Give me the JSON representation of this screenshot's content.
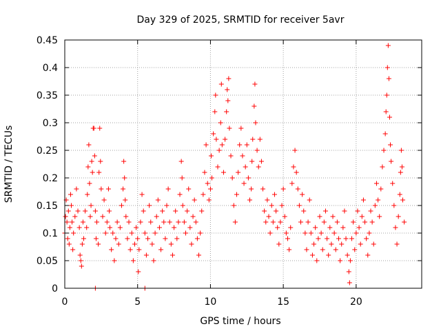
{
  "chart_data": {
    "type": "scatter",
    "title": "Day 329 of 2025, SRMTID for receiver 5avr",
    "xlabel": "GPS time / hours",
    "ylabel": "SRMTID / TECUs",
    "xlim": [
      0,
      24.5
    ],
    "ylim": [
      0,
      0.45
    ],
    "xticks": [
      0,
      5,
      10,
      15,
      20
    ],
    "xtick_labels": [
      "0",
      "5",
      "10",
      "15",
      "20"
    ],
    "yticks": [
      0,
      0.05,
      0.1,
      0.15,
      0.2,
      0.25,
      0.3,
      0.35,
      0.4,
      0.45
    ],
    "ytick_labels": [
      "0",
      "0.05",
      "0.1",
      "0.15",
      "0.2",
      "0.25",
      "0.3",
      "0.35",
      "0.4",
      "0.45"
    ],
    "grid": true,
    "marker": "+",
    "color": "#ff0000",
    "series": [
      {
        "name": "SRMTID",
        "points": [
          [
            0.0,
            0.1
          ],
          [
            0.05,
            0.13
          ],
          [
            0.1,
            0.16
          ],
          [
            0.15,
            0.12
          ],
          [
            0.2,
            0.09
          ],
          [
            0.25,
            0.14
          ],
          [
            0.3,
            0.08
          ],
          [
            0.35,
            0.11
          ],
          [
            0.4,
            0.17
          ],
          [
            0.45,
            0.15
          ],
          [
            0.5,
            0.12
          ],
          [
            0.55,
            0.07
          ],
          [
            0.6,
            0.1
          ],
          [
            0.7,
            0.13
          ],
          [
            0.8,
            0.18
          ],
          [
            0.9,
            0.14
          ],
          [
            1.0,
            0.11
          ],
          [
            1.05,
            0.06
          ],
          [
            1.1,
            0.05
          ],
          [
            1.15,
            0.04
          ],
          [
            1.2,
            0.08
          ],
          [
            1.25,
            0.12
          ],
          [
            1.3,
            0.09
          ],
          [
            1.4,
            0.14
          ],
          [
            1.5,
            0.11
          ],
          [
            1.55,
            0.17
          ],
          [
            1.6,
            0.22
          ],
          [
            1.65,
            0.26
          ],
          [
            1.7,
            0.19
          ],
          [
            1.75,
            0.13
          ],
          [
            1.8,
            0.15
          ],
          [
            1.85,
            0.23
          ],
          [
            1.9,
            0.21
          ],
          [
            1.95,
            0.29
          ],
          [
            2.0,
            0.29
          ],
          [
            2.05,
            0.24
          ],
          [
            2.1,
            0.14
          ],
          [
            2.15,
            0.09
          ],
          [
            2.2,
            0.12
          ],
          [
            2.3,
            0.08
          ],
          [
            2.35,
            0.21
          ],
          [
            2.4,
            0.29
          ],
          [
            2.45,
            0.23
          ],
          [
            2.5,
            0.18
          ],
          [
            2.6,
            0.13
          ],
          [
            2.7,
            0.16
          ],
          [
            2.8,
            0.1
          ],
          [
            2.9,
            0.12
          ],
          [
            3.0,
            0.18
          ],
          [
            3.05,
            0.14
          ],
          [
            3.1,
            0.11
          ],
          [
            3.2,
            0.07
          ],
          [
            3.3,
            0.1
          ],
          [
            3.4,
            0.05
          ],
          [
            3.5,
            0.09
          ],
          [
            3.6,
            0.12
          ],
          [
            3.7,
            0.08
          ],
          [
            3.8,
            0.11
          ],
          [
            3.9,
            0.15
          ],
          [
            4.0,
            0.18
          ],
          [
            4.05,
            0.23
          ],
          [
            4.1,
            0.2
          ],
          [
            4.15,
            0.16
          ],
          [
            4.2,
            0.13
          ],
          [
            4.3,
            0.09
          ],
          [
            4.4,
            0.12
          ],
          [
            4.5,
            0.07
          ],
          [
            4.6,
            0.1
          ],
          [
            4.7,
            0.05
          ],
          [
            4.8,
            0.08
          ],
          [
            4.9,
            0.11
          ],
          [
            5.0,
            0.09
          ],
          [
            5.05,
            0.03
          ],
          [
            5.1,
            0.07
          ],
          [
            5.2,
            0.12
          ],
          [
            5.3,
            0.17
          ],
          [
            5.4,
            0.14
          ],
          [
            5.5,
            0.1
          ],
          [
            5.6,
            0.06
          ],
          [
            5.7,
            0.09
          ],
          [
            5.8,
            0.15
          ],
          [
            5.9,
            0.12
          ],
          [
            6.0,
            0.08
          ],
          [
            6.1,
            0.05
          ],
          [
            6.2,
            0.1
          ],
          [
            6.3,
            0.13
          ],
          [
            6.4,
            0.16
          ],
          [
            6.5,
            0.11
          ],
          [
            6.6,
            0.07
          ],
          [
            6.7,
            0.14
          ],
          [
            6.8,
            0.12
          ],
          [
            6.9,
            0.09
          ],
          [
            7.0,
            0.15
          ],
          [
            7.1,
            0.18
          ],
          [
            7.2,
            0.12
          ],
          [
            7.3,
            0.08
          ],
          [
            7.4,
            0.06
          ],
          [
            7.5,
            0.11
          ],
          [
            7.6,
            0.14
          ],
          [
            7.7,
            0.09
          ],
          [
            7.8,
            0.12
          ],
          [
            7.9,
            0.17
          ],
          [
            8.0,
            0.23
          ],
          [
            8.05,
            0.2
          ],
          [
            8.1,
            0.15
          ],
          [
            8.2,
            0.12
          ],
          [
            8.3,
            0.1
          ],
          [
            8.4,
            0.14
          ],
          [
            8.5,
            0.18
          ],
          [
            8.6,
            0.11
          ],
          [
            8.7,
            0.08
          ],
          [
            8.8,
            0.13
          ],
          [
            8.9,
            0.16
          ],
          [
            9.0,
            0.12
          ],
          [
            9.1,
            0.09
          ],
          [
            9.2,
            0.06
          ],
          [
            9.3,
            0.1
          ],
          [
            9.4,
            0.14
          ],
          [
            9.5,
            0.17
          ],
          [
            9.6,
            0.21
          ],
          [
            9.7,
            0.26
          ],
          [
            9.8,
            0.19
          ],
          [
            9.9,
            0.16
          ],
          [
            10.0,
            0.18
          ],
          [
            10.05,
            0.24
          ],
          [
            10.1,
            0.2
          ],
          [
            10.2,
            0.28
          ],
          [
            10.3,
            0.32
          ],
          [
            10.35,
            0.35
          ],
          [
            10.4,
            0.27
          ],
          [
            10.5,
            0.22
          ],
          [
            10.6,
            0.25
          ],
          [
            10.7,
            0.3
          ],
          [
            10.75,
            0.37
          ],
          [
            10.8,
            0.26
          ],
          [
            10.9,
            0.21
          ],
          [
            11.0,
            0.27
          ],
          [
            11.1,
            0.32
          ],
          [
            11.15,
            0.36
          ],
          [
            11.2,
            0.34
          ],
          [
            11.25,
            0.38
          ],
          [
            11.3,
            0.29
          ],
          [
            11.4,
            0.24
          ],
          [
            11.5,
            0.2
          ],
          [
            11.6,
            0.15
          ],
          [
            11.7,
            0.12
          ],
          [
            11.8,
            0.17
          ],
          [
            11.9,
            0.21
          ],
          [
            12.0,
            0.26
          ],
          [
            12.1,
            0.29
          ],
          [
            12.2,
            0.24
          ],
          [
            12.3,
            0.19
          ],
          [
            12.4,
            0.22
          ],
          [
            12.5,
            0.26
          ],
          [
            12.6,
            0.2
          ],
          [
            12.7,
            0.16
          ],
          [
            12.8,
            0.18
          ],
          [
            12.85,
            0.23
          ],
          [
            12.9,
            0.27
          ],
          [
            13.0,
            0.33
          ],
          [
            13.05,
            0.37
          ],
          [
            13.1,
            0.3
          ],
          [
            13.2,
            0.25
          ],
          [
            13.3,
            0.22
          ],
          [
            13.4,
            0.27
          ],
          [
            13.5,
            0.23
          ],
          [
            13.6,
            0.18
          ],
          [
            13.7,
            0.14
          ],
          [
            13.8,
            0.12
          ],
          [
            13.9,
            0.16
          ],
          [
            14.0,
            0.13
          ],
          [
            14.1,
            0.1
          ],
          [
            14.2,
            0.15
          ],
          [
            14.3,
            0.12
          ],
          [
            14.4,
            0.17
          ],
          [
            14.5,
            0.14
          ],
          [
            14.6,
            0.11
          ],
          [
            14.7,
            0.08
          ],
          [
            14.8,
            0.12
          ],
          [
            14.9,
            0.15
          ],
          [
            15.0,
            0.18
          ],
          [
            15.1,
            0.13
          ],
          [
            15.2,
            0.1
          ],
          [
            15.3,
            0.09
          ],
          [
            15.4,
            0.07
          ],
          [
            15.5,
            0.11
          ],
          [
            15.6,
            0.19
          ],
          [
            15.7,
            0.22
          ],
          [
            15.8,
            0.25
          ],
          [
            15.9,
            0.21
          ],
          [
            16.0,
            0.18
          ],
          [
            16.1,
            0.15
          ],
          [
            16.2,
            0.12
          ],
          [
            16.3,
            0.17
          ],
          [
            16.4,
            0.14
          ],
          [
            16.5,
            0.1
          ],
          [
            16.6,
            0.07
          ],
          [
            16.7,
            0.12
          ],
          [
            16.8,
            0.16
          ],
          [
            16.9,
            0.1
          ],
          [
            17.0,
            0.06
          ],
          [
            17.1,
            0.08
          ],
          [
            17.2,
            0.11
          ],
          [
            17.3,
            0.05
          ],
          [
            17.4,
            0.09
          ],
          [
            17.5,
            0.13
          ],
          [
            17.6,
            0.1
          ],
          [
            17.7,
            0.07
          ],
          [
            17.8,
            0.12
          ],
          [
            17.9,
            0.14
          ],
          [
            18.0,
            0.09
          ],
          [
            18.1,
            0.06
          ],
          [
            18.2,
            0.11
          ],
          [
            18.3,
            0.08
          ],
          [
            18.4,
            0.13
          ],
          [
            18.5,
            0.1
          ],
          [
            18.6,
            0.07
          ],
          [
            18.7,
            0.12
          ],
          [
            18.8,
            0.09
          ],
          [
            18.9,
            0.05
          ],
          [
            19.0,
            0.08
          ],
          [
            19.1,
            0.11
          ],
          [
            19.2,
            0.14
          ],
          [
            19.3,
            0.09
          ],
          [
            19.4,
            0.06
          ],
          [
            19.5,
            0.03
          ],
          [
            19.55,
            0.01
          ],
          [
            19.6,
            0.05
          ],
          [
            19.7,
            0.09
          ],
          [
            19.8,
            0.12
          ],
          [
            19.9,
            0.07
          ],
          [
            20.0,
            0.1
          ],
          [
            20.1,
            0.14
          ],
          [
            20.2,
            0.11
          ],
          [
            20.3,
            0.08
          ],
          [
            20.4,
            0.13
          ],
          [
            20.5,
            0.16
          ],
          [
            20.6,
            0.12
          ],
          [
            20.7,
            0.09
          ],
          [
            20.8,
            0.06
          ],
          [
            20.9,
            0.1
          ],
          [
            21.0,
            0.14
          ],
          [
            21.1,
            0.12
          ],
          [
            21.2,
            0.08
          ],
          [
            21.3,
            0.15
          ],
          [
            21.4,
            0.19
          ],
          [
            21.5,
            0.16
          ],
          [
            21.6,
            0.13
          ],
          [
            21.7,
            0.18
          ],
          [
            21.8,
            0.22
          ],
          [
            21.9,
            0.25
          ],
          [
            22.0,
            0.28
          ],
          [
            22.05,
            0.32
          ],
          [
            22.1,
            0.35
          ],
          [
            22.15,
            0.4
          ],
          [
            22.2,
            0.44
          ],
          [
            22.25,
            0.38
          ],
          [
            22.3,
            0.31
          ],
          [
            22.35,
            0.26
          ],
          [
            22.4,
            0.23
          ],
          [
            22.5,
            0.19
          ],
          [
            22.6,
            0.15
          ],
          [
            22.7,
            0.11
          ],
          [
            22.8,
            0.08
          ],
          [
            22.9,
            0.13
          ],
          [
            23.0,
            0.17
          ],
          [
            23.05,
            0.21
          ],
          [
            23.1,
            0.25
          ],
          [
            23.15,
            0.22
          ],
          [
            23.2,
            0.16
          ],
          [
            23.3,
            0.12
          ],
          [
            2.1,
            0.0
          ],
          [
            5.5,
            0.0
          ]
        ]
      }
    ]
  }
}
